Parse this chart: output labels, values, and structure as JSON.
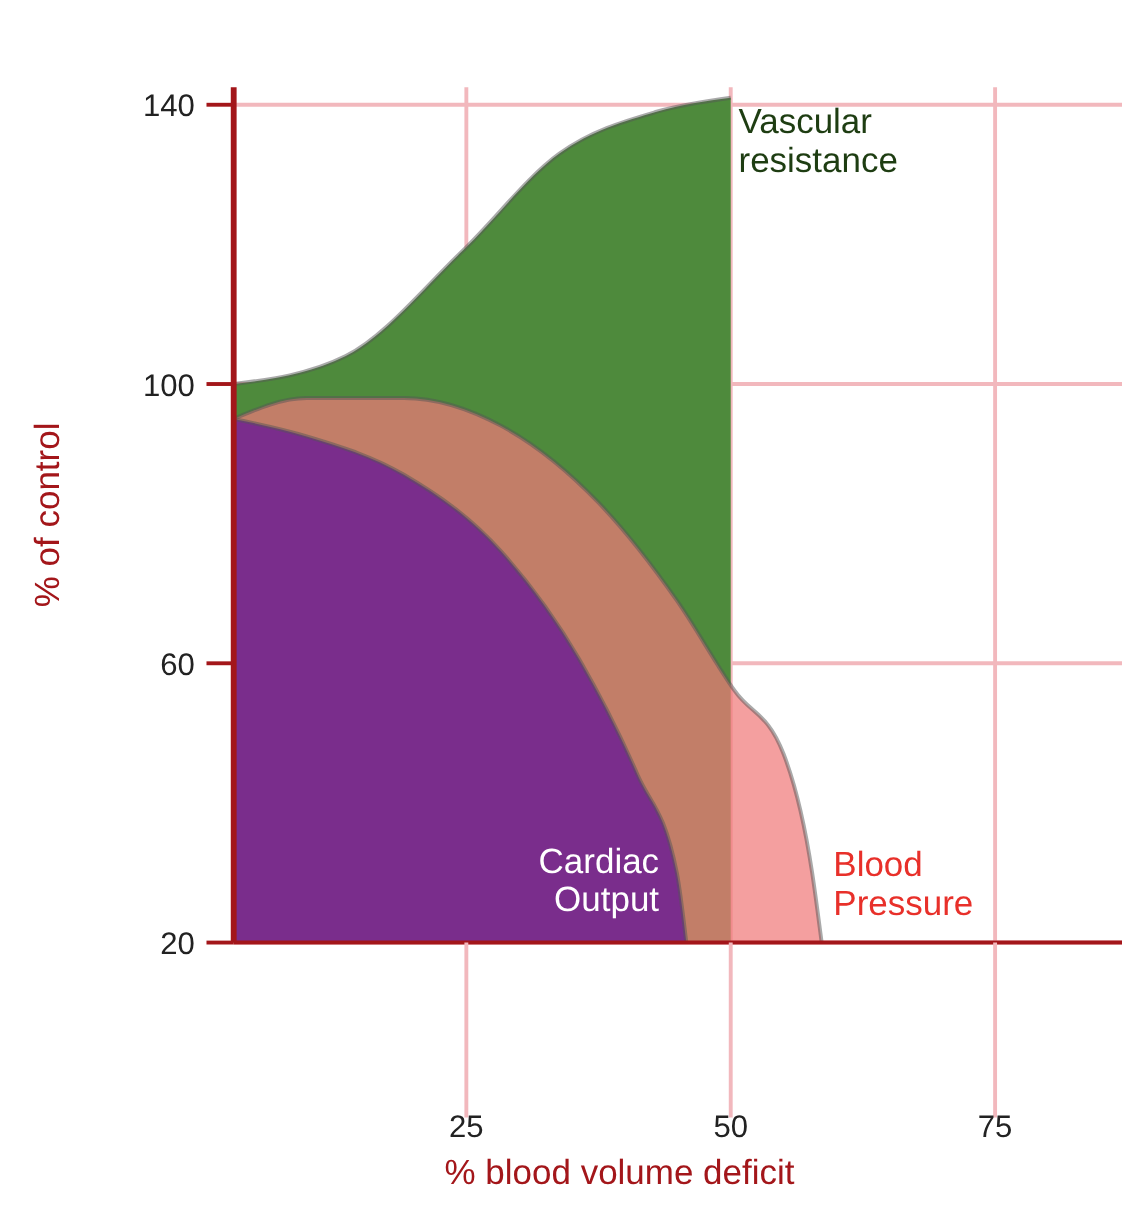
{
  "chart_data": {
    "type": "area",
    "xlabel": "% blood volume deficit",
    "ylabel": "% of control",
    "xlim": [
      3,
      87
    ],
    "ylim": [
      20,
      142.5
    ],
    "xticks": [
      25,
      50,
      75
    ],
    "yticks": [
      20,
      60,
      100,
      140
    ],
    "grid": true,
    "series": [
      {
        "name": "Vascular resistance",
        "color": "#4e8a3c",
        "x": [
          3,
          13.6,
          24.6,
          33.8,
          43,
          50
        ],
        "values": [
          100,
          104,
          119,
          133,
          139,
          141
        ]
      },
      {
        "name": "Blood Pressure",
        "color": "#f07a7a",
        "x": [
          3,
          9.9,
          19.1,
          28.3,
          37.5,
          44.9,
          50.4,
          55,
          57.7,
          58.6
        ],
        "values": [
          95,
          98,
          98,
          94,
          83,
          69,
          56,
          47,
          30,
          20
        ]
      },
      {
        "name": "Cardiac Output",
        "color": "#7a2d8c",
        "x": [
          3,
          9.9,
          19.1,
          28.3,
          35.7,
          41.2,
          44.9,
          45.8
        ],
        "values": [
          95,
          92.5,
          87,
          76,
          60.5,
          44,
          30,
          20
        ]
      }
    ]
  }
}
